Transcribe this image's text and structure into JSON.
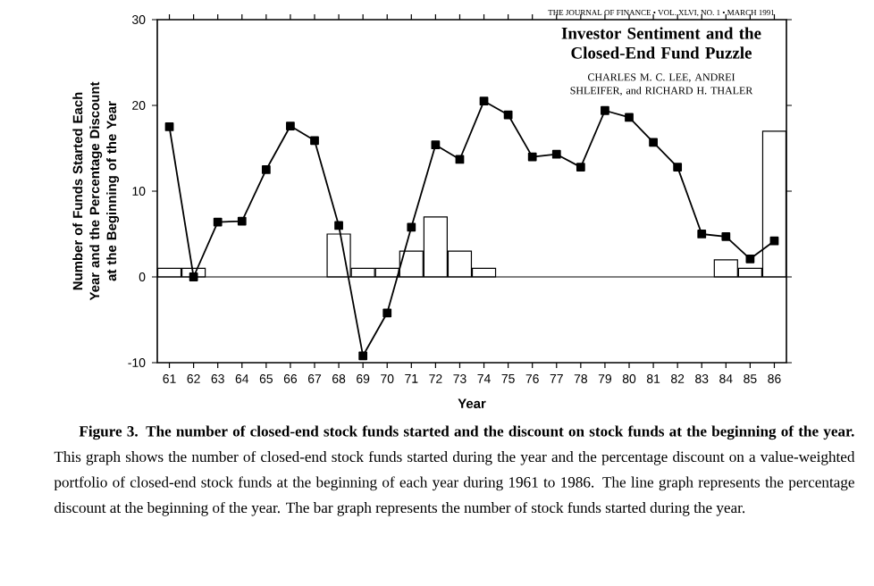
{
  "chart_data": {
    "type": "bar",
    "ylabel": "Number of Funds Started Each Year and the Percentage Discount at the Beginning of the Year",
    "xlabel": "Year",
    "categories": [
      "61",
      "62",
      "63",
      "64",
      "65",
      "66",
      "67",
      "68",
      "69",
      "70",
      "71",
      "72",
      "73",
      "74",
      "75",
      "76",
      "77",
      "78",
      "79",
      "80",
      "81",
      "82",
      "83",
      "84",
      "85",
      "86"
    ],
    "series": [
      {
        "color": "#ffffff",
        "values": [
          1,
          1,
          null,
          null,
          null,
          null,
          null,
          5,
          1,
          1,
          3,
          7,
          3,
          1,
          null,
          null,
          null,
          null,
          null,
          null,
          null,
          null,
          null,
          2,
          1,
          17
        ]
      },
      {
        "type": "line",
        "color": "#000000",
        "marker": "square",
        "line_style": "solid",
        "values": [
          17.5,
          0,
          6.4,
          6.5,
          12.5,
          17.6,
          15.9,
          6.0,
          -9.2,
          -4.2,
          5.8,
          15.4,
          13.7,
          20.5,
          18.9,
          14.0,
          14.3,
          12.8,
          19.4,
          18.6,
          15.7,
          12.8,
          5.0,
          4.7,
          2.1,
          4.2
        ]
      }
    ],
    "ylim": [
      -10,
      30
    ],
    "yticks": [
      -10,
      0,
      10,
      20,
      30
    ],
    "ref_lines": [
      {
        "axis": "y",
        "value": 0
      }
    ],
    "annotations": [
      "THE JOURNAL OF FINANCE • VOL. XLVI, NO. 1 • MARCH 1991",
      "**Investor Sentiment and the Closed-End Fund Puzzle**",
      "CHARLES M. C. LEE, ANDREI SHLEIFER, and RICHARD H. THALER",
      "**Figure 3. The number of closed-end stock funds started and the discount on stock funds at the beginning of the year.** This graph shows the number of closed-end stock funds started during the year and the percentage discount on a value-weighted portfolio of closed-end stock funds at the beginning of each year during 1961 to 1986. The line graph represents the percentage discount at the beginning of the year. The bar graph represents the number of stock funds started during the year."
    ]
  }
}
